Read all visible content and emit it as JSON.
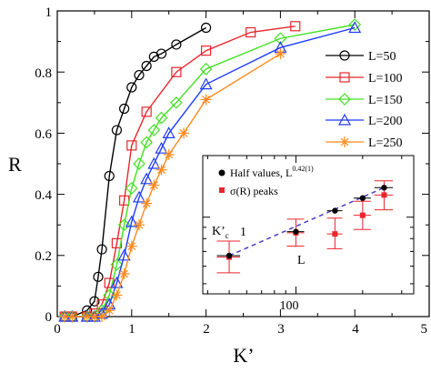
{
  "chart_data": {
    "main": {
      "type": "line",
      "xlabel": "K’",
      "ylabel": "R",
      "xlim": [
        0,
        5
      ],
      "ylim": [
        0,
        1
      ],
      "xticks": [
        "0",
        "1",
        "2",
        "3",
        "4",
        "5"
      ],
      "yticks": [
        "0",
        "0.2",
        "0.4",
        "0.6",
        "0.8",
        "1"
      ],
      "legend_position": "right",
      "series": [
        {
          "name": "L=50",
          "color": "#000000",
          "marker": "circle",
          "x": [
            0.1,
            0.2,
            0.4,
            0.5,
            0.55,
            0.6,
            0.7,
            0.8,
            0.9,
            1.0,
            1.1,
            1.2,
            1.3,
            1.4,
            1.6,
            2.0
          ],
          "y": [
            0.0,
            0.0,
            0.02,
            0.05,
            0.13,
            0.22,
            0.46,
            0.61,
            0.68,
            0.75,
            0.79,
            0.82,
            0.85,
            0.86,
            0.89,
            0.945
          ]
        },
        {
          "name": "L=100",
          "color": "#e8262b",
          "marker": "square",
          "x": [
            0.1,
            0.2,
            0.4,
            0.5,
            0.6,
            0.7,
            0.8,
            0.9,
            1.0,
            1.2,
            1.6,
            2.0,
            2.6,
            3.2
          ],
          "y": [
            0.0,
            0.0,
            0.0,
            0.01,
            0.04,
            0.11,
            0.24,
            0.38,
            0.56,
            0.67,
            0.8,
            0.87,
            0.93,
            0.95
          ]
        },
        {
          "name": "L=150",
          "color": "#41e020",
          "marker": "diamond",
          "x": [
            0.1,
            0.2,
            0.4,
            0.5,
            0.6,
            0.7,
            0.8,
            0.9,
            1.0,
            1.1,
            1.2,
            1.3,
            1.4,
            1.6,
            2.0,
            3.0,
            4.0
          ],
          "y": [
            0.0,
            0.0,
            0.0,
            0.0,
            0.02,
            0.07,
            0.17,
            0.3,
            0.42,
            0.5,
            0.57,
            0.61,
            0.65,
            0.7,
            0.81,
            0.91,
            0.955
          ]
        },
        {
          "name": "L=200",
          "color": "#1f3bff",
          "marker": "triangle",
          "x": [
            0.1,
            0.2,
            0.4,
            0.5,
            0.6,
            0.7,
            0.8,
            0.9,
            1.0,
            1.1,
            1.2,
            1.3,
            1.4,
            1.5,
            2.0,
            3.0,
            4.0
          ],
          "y": [
            0.0,
            0.0,
            0.0,
            0.0,
            0.01,
            0.04,
            0.11,
            0.2,
            0.31,
            0.39,
            0.45,
            0.5,
            0.55,
            0.6,
            0.76,
            0.88,
            0.945
          ]
        },
        {
          "name": "L=250",
          "color": "#ff8a1c",
          "marker": "star",
          "x": [
            0.1,
            0.2,
            0.4,
            0.5,
            0.6,
            0.7,
            0.8,
            0.9,
            1.0,
            1.1,
            1.2,
            1.3,
            1.4,
            1.5,
            1.7,
            2.0,
            3.0
          ],
          "y": [
            0.0,
            0.0,
            0.0,
            0.0,
            0.0,
            0.02,
            0.07,
            0.14,
            0.23,
            0.3,
            0.37,
            0.43,
            0.48,
            0.53,
            0.6,
            0.71,
            0.86
          ]
        }
      ]
    },
    "inset": {
      "type": "scatter",
      "xlabel": "L",
      "ylabel_main": "K’",
      "ylabel_sub": "c",
      "xscale": "log",
      "yscale": "log",
      "xtick_labels": [
        "100"
      ],
      "ytick_labels": [
        "1"
      ],
      "legend_position": "top-left",
      "series": [
        {
          "name": "Half values, L",
          "name_superscript": "0.42(1)",
          "color": "#000000",
          "marker": "circle",
          "x": [
            50,
            100,
            150,
            200,
            250
          ],
          "y": [
            0.67,
            0.86,
            1.07,
            1.22,
            1.36
          ],
          "err_x": [
            [
              44,
              56
            ],
            [
              91,
              109
            ],
            [
              138,
              162
            ],
            [
              182,
              218
            ],
            [
              226,
              274
            ]
          ]
        },
        {
          "name": "σ(R) peaks",
          "color": "#e8262b",
          "marker": "square",
          "x": [
            50,
            100,
            150,
            200,
            250
          ],
          "y": [
            0.66,
            0.85,
            0.84,
            1.02,
            1.26
          ],
          "err_y": [
            [
              0.56,
              0.78
            ],
            [
              0.74,
              0.98
            ],
            [
              0.72,
              0.99
            ],
            [
              0.88,
              1.18
            ],
            [
              1.08,
              1.46
            ]
          ],
          "err_x": [
            [
              44,
              56
            ],
            [
              91,
              109
            ],
            [
              138,
              162
            ],
            [
              182,
              218
            ],
            [
              226,
              274
            ]
          ]
        }
      ],
      "fit_line": {
        "color": "#4b3fc9",
        "style": "dashed",
        "x": [
          50,
          250
        ],
        "y": [
          0.67,
          1.36
        ]
      }
    }
  }
}
